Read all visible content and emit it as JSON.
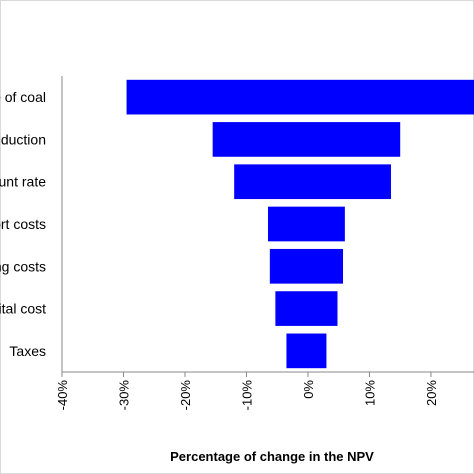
{
  "chart_data": {
    "type": "bar",
    "orientation": "horizontal",
    "title": "",
    "xlabel": "Percentage of change in the NPV",
    "ylabel": "",
    "xlim": [
      -40,
      27
    ],
    "x_ticks": [
      -40,
      -30,
      -20,
      -10,
      0,
      10,
      20
    ],
    "x_tick_labels": [
      "-40%",
      "-30%",
      "-20%",
      "-10%",
      "0%",
      "10%",
      "20%"
    ],
    "grid": false,
    "legend": "none",
    "bar_color": "#0000ff",
    "categories": [
      "e of coal",
      "duction",
      "unt rate",
      "ort costs",
      "ing costs",
      "ital cost",
      "Taxes"
    ],
    "series": [
      {
        "values_low": [
          -29.5,
          -15.5,
          -12.0,
          -6.5,
          -6.2,
          -5.3,
          -3.5
        ],
        "values_high": [
          27,
          15.0,
          13.5,
          6.0,
          5.7,
          4.8,
          3.0
        ]
      }
    ]
  }
}
